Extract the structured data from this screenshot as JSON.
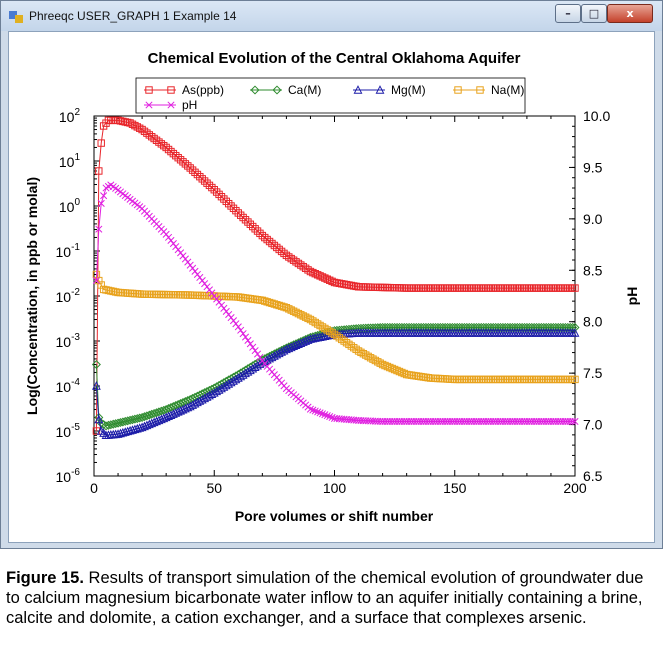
{
  "window": {
    "title": "Phreeqc USER_GRAPH 1 Example 14",
    "buttons": {
      "minimize": "–",
      "maximize": "□",
      "close": "x"
    }
  },
  "caption": {
    "label": "Figure 15.",
    "text": " Results of transport simulation of the chemical evolution of groundwater due to calcium magnesium bicarbonate water inflow to an aquifer initially containing a brine, calcite and dolomite, a cation exchanger, and a surface that complexes arsenic."
  },
  "chart_data": {
    "type": "line",
    "title": "Chemical Evolution of the Central Oklahoma Aquifer",
    "xlabel": "Pore volumes or shift number",
    "ylabel": "Log(Concentration, in ppb or molal)",
    "y2label": "pH",
    "xlim": [
      0,
      200
    ],
    "ylim": [
      1e-06,
      100
    ],
    "yscale": "log",
    "y2lim": [
      6.5,
      10.0
    ],
    "xticks": [
      "0",
      "50",
      "100",
      "150",
      "200"
    ],
    "yticks": [
      {
        "base": "10",
        "exp": "2"
      },
      {
        "base": "10",
        "exp": "1"
      },
      {
        "base": "10",
        "exp": "0"
      },
      {
        "base": "10",
        "exp": "-1"
      },
      {
        "base": "10",
        "exp": "-2"
      },
      {
        "base": "10",
        "exp": "-3"
      },
      {
        "base": "10",
        "exp": "-4"
      },
      {
        "base": "10",
        "exp": "-5"
      },
      {
        "base": "10",
        "exp": "-6"
      }
    ],
    "y2ticks": [
      "10.0",
      "9.5",
      "9.0",
      "8.5",
      "8.0",
      "7.5",
      "7.0",
      "6.5"
    ],
    "legend_position": "top",
    "grid": false,
    "series": [
      {
        "name": "As(ppb)",
        "marker": "square",
        "color": "#e8262b",
        "axis": "left",
        "points": [
          [
            1,
            1e-05
          ],
          [
            1.5,
            0.5
          ],
          [
            2,
            6
          ],
          [
            3,
            25
          ],
          [
            4,
            60
          ],
          [
            6,
            80
          ],
          [
            10,
            80
          ],
          [
            15,
            70
          ],
          [
            20,
            50
          ],
          [
            30,
            20
          ],
          [
            40,
            7
          ],
          [
            50,
            2.3
          ],
          [
            60,
            0.7
          ],
          [
            70,
            0.22
          ],
          [
            80,
            0.08
          ],
          [
            90,
            0.035
          ],
          [
            100,
            0.02
          ],
          [
            110,
            0.016
          ],
          [
            130,
            0.015
          ],
          [
            200,
            0.015
          ]
        ]
      },
      {
        "name": "Ca(M)",
        "marker": "diamond",
        "color": "#2e8b2e",
        "axis": "left",
        "points": [
          [
            1,
            0.0003
          ],
          [
            2,
            2e-05
          ],
          [
            3,
            1.5e-05
          ],
          [
            5,
            1.3e-05
          ],
          [
            10,
            1.5e-05
          ],
          [
            20,
            2e-05
          ],
          [
            30,
            3e-05
          ],
          [
            40,
            5e-05
          ],
          [
            50,
            9e-05
          ],
          [
            60,
            0.00018
          ],
          [
            70,
            0.00038
          ],
          [
            80,
            0.0007
          ],
          [
            90,
            0.0012
          ],
          [
            100,
            0.0017
          ],
          [
            110,
            0.0019
          ],
          [
            120,
            0.002
          ],
          [
            200,
            0.002
          ]
        ]
      },
      {
        "name": "Mg(M)",
        "marker": "triangle",
        "color": "#1c1ca8",
        "axis": "left",
        "points": [
          [
            1,
            0.0001
          ],
          [
            2,
            1.8e-05
          ],
          [
            3,
            1e-05
          ],
          [
            5,
            8e-06
          ],
          [
            10,
            8.5e-06
          ],
          [
            20,
            1.2e-05
          ],
          [
            30,
            2e-05
          ],
          [
            40,
            3.5e-05
          ],
          [
            50,
            7e-05
          ],
          [
            60,
            0.00015
          ],
          [
            70,
            0.00033
          ],
          [
            80,
            0.00065
          ],
          [
            90,
            0.0011
          ],
          [
            100,
            0.0014
          ],
          [
            110,
            0.0015
          ],
          [
            120,
            0.0015
          ],
          [
            200,
            0.0015
          ]
        ]
      },
      {
        "name": "Na(M)",
        "marker": "square",
        "color": "#e8a21c",
        "axis": "left",
        "points": [
          [
            1,
            0.03
          ],
          [
            2,
            0.022
          ],
          [
            4,
            0.014
          ],
          [
            10,
            0.012
          ],
          [
            20,
            0.011
          ],
          [
            40,
            0.0105
          ],
          [
            50,
            0.01
          ],
          [
            60,
            0.0095
          ],
          [
            70,
            0.008
          ],
          [
            80,
            0.0055
          ],
          [
            90,
            0.003
          ],
          [
            100,
            0.0014
          ],
          [
            110,
            0.0006
          ],
          [
            120,
            0.0003
          ],
          [
            130,
            0.00018
          ],
          [
            140,
            0.00015
          ],
          [
            150,
            0.00014
          ],
          [
            200,
            0.00014
          ]
        ]
      },
      {
        "name": "pH",
        "marker": "x",
        "color": "#e020e0",
        "axis": "right",
        "points": [
          [
            1,
            8.4
          ],
          [
            2,
            8.9
          ],
          [
            3,
            9.15
          ],
          [
            5,
            9.3
          ],
          [
            7,
            9.33
          ],
          [
            10,
            9.28
          ],
          [
            20,
            9.1
          ],
          [
            30,
            8.85
          ],
          [
            40,
            8.55
          ],
          [
            50,
            8.25
          ],
          [
            60,
            7.95
          ],
          [
            70,
            7.62
          ],
          [
            80,
            7.35
          ],
          [
            90,
            7.15
          ],
          [
            100,
            7.06
          ],
          [
            110,
            7.04
          ],
          [
            120,
            7.03
          ],
          [
            200,
            7.03
          ]
        ]
      }
    ]
  }
}
